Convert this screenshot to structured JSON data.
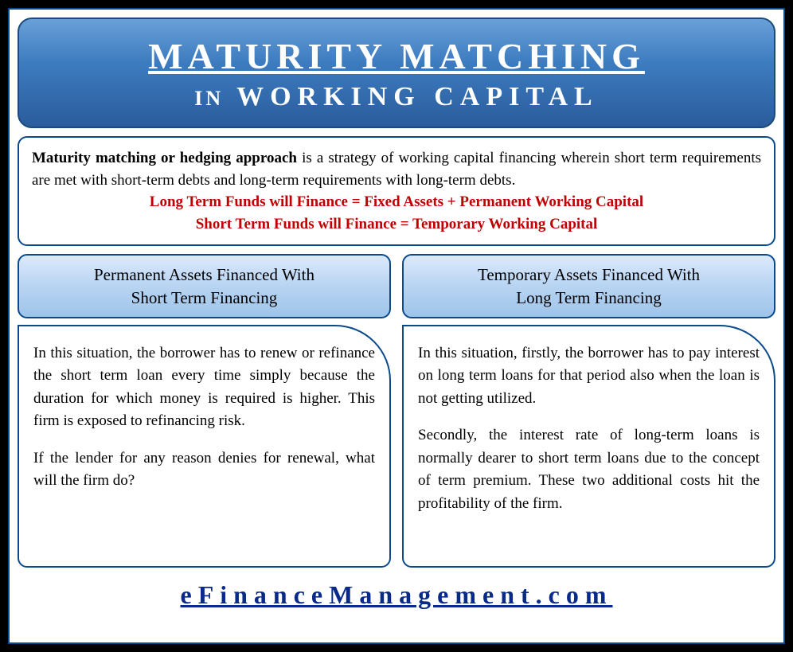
{
  "header": {
    "title": "MATURITY MATCHING",
    "subtitle_prefix": "IN",
    "subtitle_main": "WORKING CAPITAL"
  },
  "description": {
    "lead_bold": "Maturity matching or hedging approach",
    "lead_rest": " is a strategy of working capital financing wherein short term requirements are met with short-term debts and long-term requirements with long-term debts.",
    "red_line_1": "Long Term Funds will Finance =  Fixed Assets + Permanent Working Capital",
    "red_line_2": "Short Term Funds will Finance = Temporary Working Capital"
  },
  "columns": {
    "left": {
      "header_line1": "Permanent Assets Financed With",
      "header_line2": "Short Term Financing",
      "para1": "In this situation, the borrower has to renew or refinance the short term loan every time simply because the duration for which money is required is higher. This firm is exposed to refinancing risk.",
      "para2": "If the lender for any reason denies for renewal, what will the firm do?"
    },
    "right": {
      "header_line1": "Temporary Assets Financed With",
      "header_line2": "Long Term Financing",
      "para1": "In this situation, firstly, the borrower has to pay interest on long term loans for that period also when the loan is not getting utilized.",
      "para2": "Secondly, the interest rate of long-term loans is normally dearer to short term loans due to the concept of term premium. These two additional costs hit the profitability of the firm."
    }
  },
  "footer": {
    "link_text": "eFinanceManagement.com"
  },
  "styling": {
    "page_bg": "#000000",
    "container_border": "#0a4a8a",
    "header_gradient": [
      "#6aa0d8",
      "#3d7cc0",
      "#2a5c9c"
    ],
    "header_text_color": "#ffffff",
    "header_title_fontsize": 46,
    "header_subtitle_fontsize": 34,
    "col_header_gradient": [
      "#dceafc",
      "#b8d4f2",
      "#9ec4ea"
    ],
    "red_text_color": "#c00000",
    "footer_link_color": "#0a2a8a",
    "footer_fontsize": 32,
    "body_fontsize": 19,
    "col_header_fontsize": 21
  }
}
